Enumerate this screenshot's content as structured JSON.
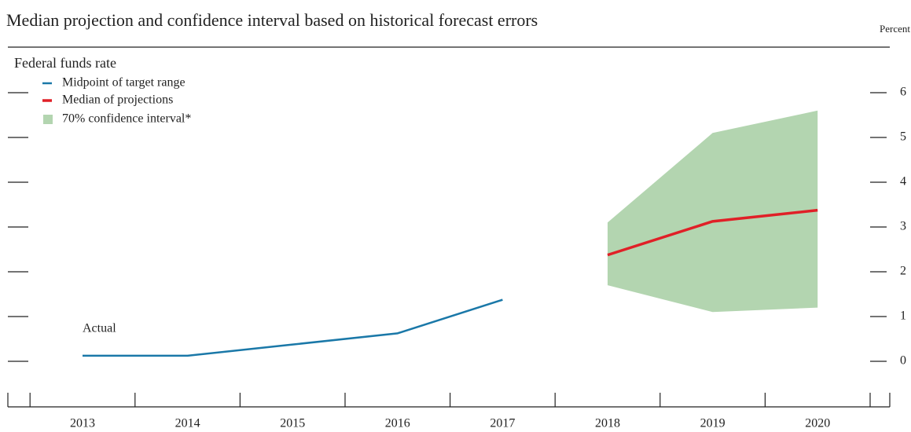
{
  "chart_data": {
    "type": "line",
    "title": "Median projection and confidence interval based on historical forecast errors",
    "y_label": "Percent",
    "subtitle": "Federal funds rate",
    "annotation": "Actual",
    "categories": [
      "2013",
      "2014",
      "2015",
      "2016",
      "2017",
      "2018",
      "2019",
      "2020"
    ],
    "series": [
      {
        "name": "Midpoint of target range",
        "color": "#1a78a8",
        "values": [
          0.125,
          0.125,
          0.375,
          0.625,
          1.375,
          null,
          null,
          null
        ]
      },
      {
        "name": "Median of projections",
        "color": "#e02027",
        "values": [
          null,
          null,
          null,
          null,
          null,
          2.375,
          3.125,
          3.375
        ]
      }
    ],
    "band": {
      "name": "70% confidence interval*",
      "color": "#b3d5b0",
      "lower": [
        null,
        null,
        null,
        null,
        null,
        1.7,
        1.1,
        1.2
      ],
      "upper": [
        null,
        null,
        null,
        null,
        null,
        3.1,
        5.1,
        5.6
      ]
    },
    "ylim": [
      0,
      6
    ],
    "yticks": [
      0,
      1,
      2,
      3,
      4,
      5,
      6
    ]
  }
}
